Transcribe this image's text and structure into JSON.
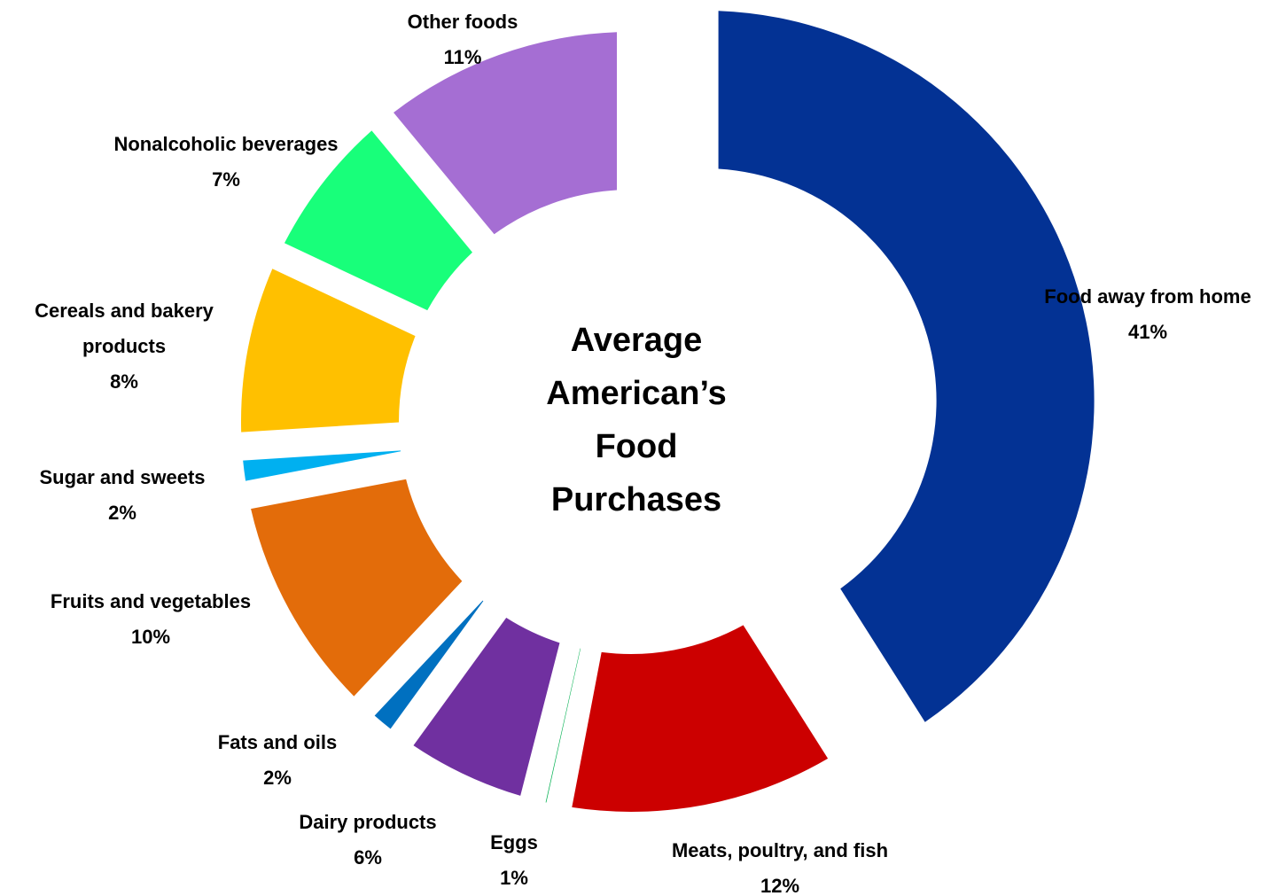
{
  "chart_data": {
    "type": "pie",
    "variant": "exploded-donut",
    "title_lines": [
      "Average",
      "American’s",
      "Food",
      "Purchases"
    ],
    "legend": "none",
    "data_labels": "category and percent, outside each slice",
    "slices": [
      {
        "category": "Food away from home",
        "label_lines": [
          "Food away from home"
        ],
        "value": 41,
        "value_text": "41%",
        "color": "#033294"
      },
      {
        "category": "Meats, poultry, and fish",
        "label_lines": [
          "Meats, poultry, and fish"
        ],
        "value": 12,
        "value_text": "12%",
        "color": "#CC0000"
      },
      {
        "category": "Eggs",
        "label_lines": [
          "Eggs"
        ],
        "value": 1,
        "value_text": "1%",
        "color": "#00B050"
      },
      {
        "category": "Dairy products",
        "label_lines": [
          "Dairy products"
        ],
        "value": 6,
        "value_text": "6%",
        "color": "#7030A0"
      },
      {
        "category": "Fats and oils",
        "label_lines": [
          "Fats and oils"
        ],
        "value": 2,
        "value_text": "2%",
        "color": "#0070C0"
      },
      {
        "category": "Fruits and vegetables",
        "label_lines": [
          "Fruits and vegetables"
        ],
        "value": 10,
        "value_text": "10%",
        "color": "#E36C0A"
      },
      {
        "category": "Sugar and sweets",
        "label_lines": [
          "Sugar and sweets"
        ],
        "value": 2,
        "value_text": "2%",
        "color": "#00B0F0"
      },
      {
        "category": "Cereals and bakery products",
        "label_lines": [
          "Cereals and bakery",
          "products"
        ],
        "value": 8,
        "value_text": "8%",
        "color": "#FFC000"
      },
      {
        "category": "Nonalcoholic beverages",
        "label_lines": [
          "Nonalcoholic beverages"
        ],
        "value": 7,
        "value_text": "7%",
        "color": "#18FF7A"
      },
      {
        "category": "Other foods",
        "label_lines": [
          "Other foods"
        ],
        "value": 11,
        "value_text": "11%",
        "color": "#A56ED3"
      }
    ]
  }
}
